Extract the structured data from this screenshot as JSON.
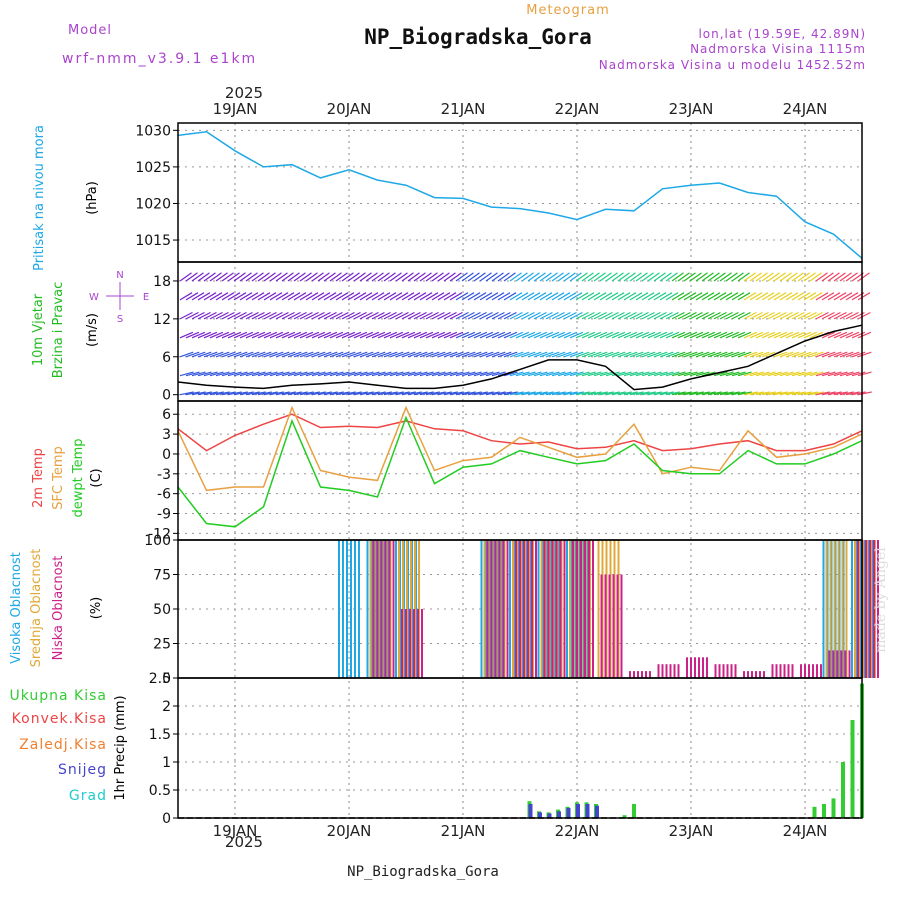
{
  "header": {
    "model_label": "Model",
    "model_name": "wrf-nmm_v3.9.1 e1km",
    "subtitle": "Meteogram",
    "title": "NP_Biogradska_Gora",
    "coords": "lon,lat (19.59E, 42.89N)",
    "elevation": "Nadmorska Visina 1115m",
    "model_elevation": "Nadmorska Visina u modelu 1452.52m",
    "footer_title": "NP_Biogradska_Gora",
    "signature": "made by Angel"
  },
  "colors": {
    "pressure": "#1ea8e6",
    "wind_label": "#22bb22",
    "temp_2m": "#ee4444",
    "temp_sfc": "#e8a040",
    "dewpoint": "#22cc22",
    "cloud_high": "#1ea8e6",
    "cloud_mid": "#e0a838",
    "cloud_low": "#cc2288",
    "rain_total": "#33cc33",
    "rain_conv": "#ee4444",
    "rain_frozen": "#f08030",
    "snow": "#4444cc",
    "graupel": "#22cccc",
    "purple": "#aa44cc",
    "orange": "#e8a040"
  },
  "time_axis": {
    "year": "2025",
    "day_labels": [
      "19JAN",
      "20JAN",
      "21JAN",
      "22JAN",
      "23JAN",
      "24JAN"
    ],
    "start": "2025-01-18T12:00",
    "end": "2025-01-24T12:00"
  },
  "compass": {
    "n": "N",
    "s": "S",
    "e": "E",
    "w": "W"
  },
  "chart_data": [
    {
      "type": "line",
      "panel": "pressure",
      "ylabel": "Pritisak na nivou mora",
      "unit": "(hPa)",
      "ylim": [
        1012,
        1031
      ],
      "yticks": [
        1015,
        1020,
        1025,
        1030
      ],
      "x": [
        "2025-01-18T12:00",
        "2025-01-18T18:00",
        "2025-01-19T00:00",
        "2025-01-19T06:00",
        "2025-01-19T12:00",
        "2025-01-19T18:00",
        "2025-01-20T00:00",
        "2025-01-20T06:00",
        "2025-01-20T12:00",
        "2025-01-20T18:00",
        "2025-01-21T00:00",
        "2025-01-21T06:00",
        "2025-01-21T12:00",
        "2025-01-21T18:00",
        "2025-01-22T00:00",
        "2025-01-22T06:00",
        "2025-01-22T12:00",
        "2025-01-22T18:00",
        "2025-01-23T00:00",
        "2025-01-23T06:00",
        "2025-01-23T12:00",
        "2025-01-23T18:00",
        "2025-01-24T00:00",
        "2025-01-24T06:00",
        "2025-01-24T12:00"
      ],
      "series": [
        {
          "name": "Pritisak na nivou mora",
          "values": [
            1029.3,
            1029.8,
            1027.2,
            1025.0,
            1025.3,
            1023.5,
            1024.6,
            1023.2,
            1022.5,
            1020.8,
            1020.7,
            1019.5,
            1019.3,
            1018.7,
            1017.8,
            1019.2,
            1019.0,
            1022.0,
            1022.5,
            1022.8,
            1021.5,
            1021.0,
            1017.5,
            1015.8,
            1012.5
          ]
        }
      ]
    },
    {
      "type": "line",
      "panel": "wind",
      "ylabel": "10m Vjetar Brzina i Pravac",
      "unit": "(m/s)",
      "ylim": [
        -1,
        21
      ],
      "yticks": [
        0,
        6,
        12,
        18
      ],
      "x": [
        "2025-01-18T12:00",
        "2025-01-18T18:00",
        "2025-01-19T00:00",
        "2025-01-19T06:00",
        "2025-01-19T12:00",
        "2025-01-19T18:00",
        "2025-01-20T00:00",
        "2025-01-20T06:00",
        "2025-01-20T12:00",
        "2025-01-20T18:00",
        "2025-01-21T00:00",
        "2025-01-21T06:00",
        "2025-01-21T12:00",
        "2025-01-21T18:00",
        "2025-01-22T00:00",
        "2025-01-22T06:00",
        "2025-01-22T12:00",
        "2025-01-22T18:00",
        "2025-01-23T00:00",
        "2025-01-23T06:00",
        "2025-01-23T12:00",
        "2025-01-23T18:00",
        "2025-01-24T00:00",
        "2025-01-24T06:00",
        "2025-01-24T12:00"
      ],
      "series": [
        {
          "name": "10m Vjetar Brzina i Pravac",
          "values": [
            2.0,
            1.5,
            1.2,
            1.0,
            1.5,
            1.7,
            2.0,
            1.5,
            1.0,
            1.0,
            1.5,
            2.5,
            4.0,
            5.5,
            5.5,
            4.5,
            0.8,
            1.2,
            2.5,
            3.5,
            4.5,
            6.5,
            8.5,
            10.0,
            11.0
          ]
        }
      ]
    },
    {
      "type": "line",
      "panel": "temperature",
      "ylabel": [
        "2m Temp",
        "SFC Temp",
        "dewpt Temp"
      ],
      "unit": "(C)",
      "ylim": [
        -13,
        8
      ],
      "yticks": [
        -12,
        -9,
        -6,
        -3,
        0,
        3,
        6
      ],
      "x": [
        "2025-01-18T12:00",
        "2025-01-18T18:00",
        "2025-01-19T00:00",
        "2025-01-19T06:00",
        "2025-01-19T12:00",
        "2025-01-19T18:00",
        "2025-01-20T00:00",
        "2025-01-20T06:00",
        "2025-01-20T12:00",
        "2025-01-20T18:00",
        "2025-01-21T00:00",
        "2025-01-21T06:00",
        "2025-01-21T12:00",
        "2025-01-21T18:00",
        "2025-01-22T00:00",
        "2025-01-22T06:00",
        "2025-01-22T12:00",
        "2025-01-22T18:00",
        "2025-01-23T00:00",
        "2025-01-23T06:00",
        "2025-01-23T12:00",
        "2025-01-23T18:00",
        "2025-01-24T00:00",
        "2025-01-24T06:00",
        "2025-01-24T12:00"
      ],
      "series": [
        {
          "name": "2m Temp",
          "values": [
            3.8,
            0.5,
            2.8,
            4.5,
            6.0,
            4.0,
            4.2,
            4.0,
            5.0,
            3.8,
            3.5,
            2.0,
            1.5,
            1.8,
            0.8,
            1.0,
            2.0,
            0.5,
            0.8,
            1.5,
            2.0,
            0.5,
            0.5,
            1.5,
            3.5
          ]
        },
        {
          "name": "SFC Temp",
          "values": [
            3.5,
            -5.5,
            -5.0,
            -5.0,
            7.0,
            -2.5,
            -3.5,
            -4.0,
            7.0,
            -2.5,
            -1.0,
            -0.5,
            2.5,
            1.0,
            -0.5,
            0.0,
            4.5,
            -3.0,
            -2.0,
            -2.5,
            3.5,
            -0.5,
            0.0,
            1.0,
            3.0
          ]
        },
        {
          "name": "dewpt Temp",
          "values": [
            -5.0,
            -10.5,
            -11.0,
            -8.0,
            5.0,
            -5.0,
            -5.5,
            -6.5,
            5.5,
            -4.5,
            -2.0,
            -1.5,
            0.5,
            -0.5,
            -1.5,
            -1.0,
            1.5,
            -2.5,
            -3.0,
            -3.0,
            0.5,
            -1.5,
            -1.5,
            0.0,
            2.0
          ]
        }
      ]
    },
    {
      "type": "bar",
      "panel": "clouds",
      "ylabel": [
        "Visoka Oblacnost",
        "Srednja Oblacnost",
        "Niska Oblacnost"
      ],
      "unit": "(%)",
      "ylim": [
        0,
        100
      ],
      "yticks": [
        0,
        25,
        50,
        75,
        100
      ],
      "x": [
        "2025-01-18T12:00",
        "2025-01-18T18:00",
        "2025-01-19T00:00",
        "2025-01-19T06:00",
        "2025-01-19T12:00",
        "2025-01-19T18:00",
        "2025-01-20T00:00",
        "2025-01-20T06:00",
        "2025-01-20T12:00",
        "2025-01-20T18:00",
        "2025-01-21T00:00",
        "2025-01-21T06:00",
        "2025-01-21T12:00",
        "2025-01-21T18:00",
        "2025-01-22T00:00",
        "2025-01-22T06:00",
        "2025-01-22T12:00",
        "2025-01-22T18:00",
        "2025-01-23T00:00",
        "2025-01-23T06:00",
        "2025-01-23T12:00",
        "2025-01-23T18:00",
        "2025-01-24T00:00",
        "2025-01-24T06:00",
        "2025-01-24T12:00"
      ],
      "series": [
        {
          "name": "Visoka Oblacnost",
          "values": [
            0,
            0,
            0,
            0,
            0,
            0,
            100,
            100,
            100,
            0,
            0,
            100,
            100,
            100,
            100,
            0,
            0,
            0,
            0,
            0,
            0,
            0,
            0,
            100,
            100
          ]
        },
        {
          "name": "Srednja Oblacnost",
          "values": [
            0,
            0,
            0,
            0,
            0,
            0,
            0,
            100,
            100,
            0,
            0,
            100,
            100,
            100,
            100,
            100,
            0,
            0,
            0,
            0,
            0,
            0,
            0,
            100,
            100
          ]
        },
        {
          "name": "Niska Oblacnost",
          "values": [
            0,
            0,
            0,
            0,
            0,
            0,
            0,
            100,
            50,
            0,
            0,
            100,
            100,
            100,
            100,
            75,
            5,
            10,
            15,
            10,
            5,
            10,
            10,
            20,
            100
          ]
        }
      ]
    },
    {
      "type": "bar",
      "panel": "precipitation",
      "ylabel": [
        "Ukupna Kisa",
        "Konvek.Kisa",
        "Zaledj.Kisa",
        "Snijeg",
        "Grad"
      ],
      "unit": "1hr Precip (mm)",
      "ylim": [
        0,
        2.5
      ],
      "yticks": [
        0,
        0.5,
        1,
        1.5,
        2,
        2.5
      ],
      "x": [
        "2025-01-21T14:00",
        "2025-01-21T16:00",
        "2025-01-21T18:00",
        "2025-01-21T20:00",
        "2025-01-21T22:00",
        "2025-01-22T00:00",
        "2025-01-22T02:00",
        "2025-01-22T04:00",
        "2025-01-22T10:00",
        "2025-01-22T12:00",
        "2025-01-24T02:00",
        "2025-01-24T04:00",
        "2025-01-24T06:00",
        "2025-01-24T08:00",
        "2025-01-24T10:00",
        "2025-01-24T12:00"
      ],
      "series": [
        {
          "name": "Ukupna Kisa",
          "values": [
            0.3,
            0.12,
            0.1,
            0.15,
            0.2,
            0.28,
            0.28,
            0.25,
            0.05,
            0.25,
            0.2,
            0.25,
            0.35,
            1.0,
            1.75,
            2.4
          ]
        },
        {
          "name": "Snijeg",
          "values": [
            0.25,
            0.1,
            0.08,
            0.12,
            0.18,
            0.25,
            0.25,
            0.22,
            0.0,
            0.0,
            0.0,
            0.0,
            0.0,
            0.0,
            0.0,
            0.0
          ]
        }
      ]
    }
  ]
}
